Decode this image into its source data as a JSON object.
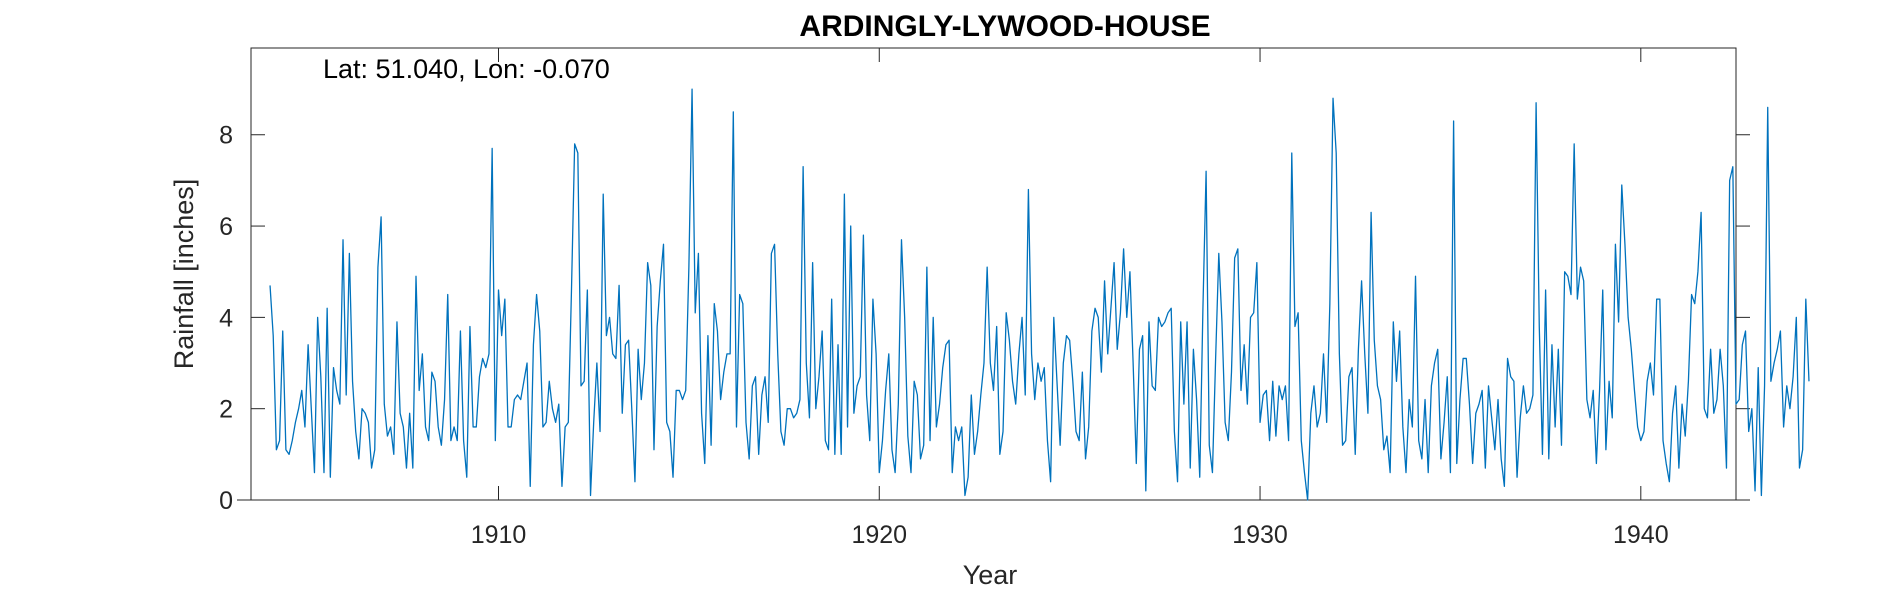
{
  "chart_data": {
    "type": "line",
    "title": "ARDINGLY-LYWOOD-HOUSE",
    "annotation": "Lat: 51.040, Lon: -0.070",
    "xlabel": "Year",
    "ylabel": "Rainfall [inches]",
    "xlim": [
      1903.5,
      1942.5
    ],
    "ylim": [
      0,
      9.9
    ],
    "xticks": [
      1910,
      1920,
      1930,
      1940
    ],
    "yticks": [
      0,
      2,
      4,
      6,
      8
    ],
    "grid": false,
    "line_color": "#0072bd",
    "axis_color": "#262626",
    "series": [
      {
        "x_start": 1904.0,
        "x_step": 0.0833333,
        "values": [
          4.7,
          3.6,
          1.1,
          1.3,
          3.7,
          1.1,
          1.0,
          1.3,
          1.7,
          2.0,
          2.4,
          1.6,
          3.4,
          2.0,
          0.6,
          4.0,
          2.7,
          0.6,
          4.2,
          0.5,
          2.9,
          2.4,
          2.1,
          5.7,
          2.3,
          5.4,
          2.6,
          1.5,
          0.9,
          2.0,
          1.9,
          1.7,
          0.7,
          1.1,
          5.1,
          6.2,
          2.1,
          1.4,
          1.6,
          1.0,
          3.9,
          1.9,
          1.6,
          0.7,
          1.9,
          0.7,
          4.9,
          2.4,
          3.2,
          1.6,
          1.3,
          2.8,
          2.6,
          1.6,
          1.2,
          2.2,
          4.5,
          1.3,
          1.6,
          1.3,
          3.7,
          1.3,
          0.5,
          3.8,
          1.6,
          1.6,
          2.7,
          3.1,
          2.9,
          3.2,
          7.7,
          1.3,
          4.6,
          3.6,
          4.4,
          1.6,
          1.6,
          2.2,
          2.3,
          2.2,
          2.6,
          3.0,
          0.3,
          3.4,
          4.5,
          3.7,
          1.6,
          1.7,
          2.6,
          2.0,
          1.7,
          2.1,
          0.3,
          1.6,
          1.7,
          4.6,
          7.8,
          7.6,
          2.5,
          2.6,
          4.6,
          0.1,
          1.7,
          3.0,
          1.5,
          6.7,
          3.6,
          4.0,
          3.2,
          3.1,
          4.7,
          1.9,
          3.4,
          3.5,
          2.0,
          0.4,
          3.3,
          2.2,
          3.0,
          5.2,
          4.7,
          1.1,
          3.8,
          4.8,
          5.6,
          1.7,
          1.5,
          0.5,
          2.4,
          2.4,
          2.2,
          2.4,
          5.1,
          9.0,
          4.1,
          5.4,
          1.9,
          0.8,
          3.6,
          1.2,
          4.3,
          3.7,
          2.2,
          2.8,
          3.2,
          3.2,
          8.5,
          1.6,
          4.5,
          4.3,
          1.7,
          0.9,
          2.5,
          2.7,
          1.0,
          2.3,
          2.7,
          1.7,
          5.4,
          5.6,
          3.2,
          1.5,
          1.2,
          2.0,
          2.0,
          1.8,
          1.9,
          2.2,
          7.3,
          3.0,
          1.8,
          5.2,
          2.0,
          2.7,
          3.7,
          1.3,
          1.1,
          4.4,
          1.0,
          3.4,
          1.0,
          6.7,
          1.6,
          6.0,
          1.9,
          2.5,
          2.7,
          5.8,
          2.3,
          1.3,
          4.4,
          3.2,
          0.6,
          1.3,
          2.4,
          3.2,
          1.1,
          0.6,
          2.1,
          5.7,
          4.0,
          1.4,
          0.6,
          2.6,
          2.3,
          0.9,
          1.2,
          5.1,
          1.3,
          4.0,
          1.6,
          2.1,
          2.9,
          3.4,
          3.5,
          0.6,
          1.6,
          1.3,
          1.6,
          0.1,
          0.5,
          2.3,
          1.0,
          1.5,
          2.3,
          3.0,
          5.1,
          3.0,
          2.4,
          3.8,
          1.0,
          1.5,
          4.1,
          3.5,
          2.6,
          2.1,
          3.2,
          4.0,
          2.3,
          6.8,
          3.2,
          2.2,
          3.0,
          2.6,
          2.9,
          1.3,
          0.4,
          4.0,
          2.6,
          1.2,
          3.0,
          3.6,
          3.5,
          2.6,
          1.5,
          1.3,
          2.8,
          0.9,
          1.6,
          3.7,
          4.2,
          4.0,
          2.8,
          4.8,
          3.2,
          4.2,
          5.2,
          3.3,
          4.1,
          5.5,
          4.0,
          5.0,
          3.0,
          0.8,
          3.3,
          3.6,
          0.2,
          3.9,
          2.5,
          2.4,
          4.0,
          3.8,
          3.9,
          4.1,
          4.2,
          1.5,
          0.4,
          3.9,
          2.1,
          3.9,
          0.7,
          3.3,
          2.2,
          0.5,
          4.2,
          7.2,
          1.2,
          0.6,
          3.1,
          5.4,
          3.9,
          1.7,
          1.3,
          2.8,
          5.3,
          5.5,
          2.4,
          3.4,
          2.1,
          4.0,
          4.1,
          5.2,
          1.7,
          2.3,
          2.4,
          1.3,
          2.6,
          1.4,
          2.5,
          2.2,
          2.5,
          1.3,
          7.6,
          3.8,
          4.1,
          1.3,
          0.6,
          0.0,
          1.9,
          2.5,
          1.6,
          1.9,
          3.2,
          1.7,
          4.3,
          8.8,
          7.6,
          3.2,
          1.2,
          1.3,
          2.7,
          2.9,
          1.0,
          3.3,
          4.8,
          3.2,
          1.9,
          6.3,
          3.5,
          2.5,
          2.2,
          1.1,
          1.4,
          0.6,
          3.9,
          2.6,
          3.7,
          1.6,
          0.6,
          2.2,
          1.6,
          4.9,
          1.3,
          0.9,
          2.2,
          0.6,
          2.5,
          3.0,
          3.3,
          0.9,
          1.7,
          2.7,
          0.6,
          8.3,
          0.8,
          2.2,
          3.1,
          3.1,
          2.1,
          0.8,
          1.9,
          2.1,
          2.4,
          0.7,
          2.5,
          1.8,
          1.1,
          2.2,
          0.9,
          0.3,
          3.1,
          2.7,
          2.6,
          0.5,
          1.8,
          2.5,
          1.9,
          2.0,
          2.3,
          8.7,
          3.8,
          1.0,
          4.6,
          0.9,
          3.4,
          1.6,
          3.3,
          1.2,
          5.0,
          4.9,
          4.5,
          7.8,
          4.4,
          5.1,
          4.8,
          2.2,
          1.8,
          2.4,
          0.8,
          2.4,
          4.6,
          1.1,
          2.6,
          1.8,
          5.6,
          3.9,
          6.9,
          5.6,
          4.0,
          3.3,
          2.4,
          1.6,
          1.3,
          1.5,
          2.6,
          3.0,
          2.3,
          4.4,
          4.4,
          1.3,
          0.8,
          0.4,
          1.9,
          2.5,
          0.7,
          2.1,
          1.4,
          2.6,
          4.5,
          4.3,
          5.0,
          6.3,
          2.0,
          1.8,
          3.3,
          1.9,
          2.2,
          3.3,
          2.5,
          0.7,
          7.0,
          7.3,
          2.1,
          2.2,
          3.4,
          3.7,
          1.5,
          2.0,
          0.2,
          2.9,
          0.1,
          2.5,
          8.6,
          2.6,
          3.0,
          3.3,
          3.7,
          1.6,
          2.5,
          2.0,
          2.7,
          4.0,
          0.7,
          1.1,
          4.4,
          2.6
        ]
      }
    ]
  }
}
